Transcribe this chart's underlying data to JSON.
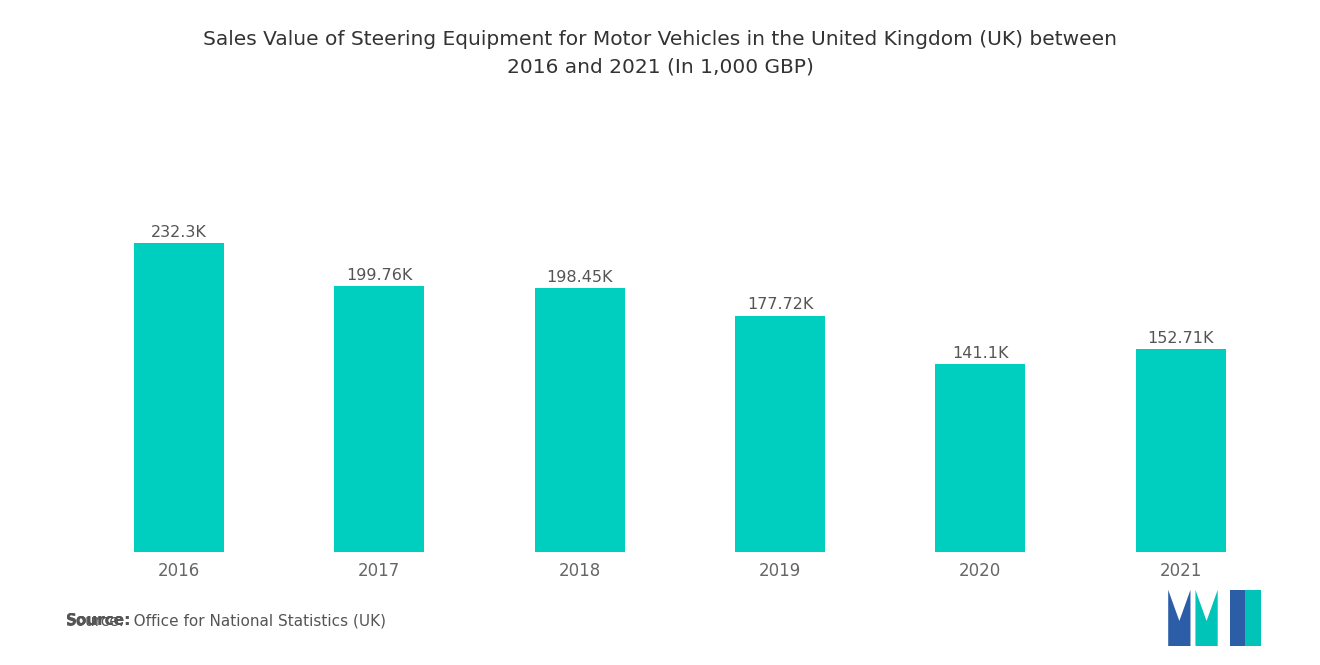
{
  "title": "Sales Value of Steering Equipment for Motor Vehicles in the United Kingdom (UK) between\n2016 and 2021 (In 1,000 GBP)",
  "categories": [
    "2016",
    "2017",
    "2018",
    "2019",
    "2020",
    "2021"
  ],
  "values": [
    232.3,
    199.76,
    198.45,
    177.72,
    141.1,
    152.71
  ],
  "labels": [
    "232.3K",
    "199.76K",
    "198.45K",
    "177.72K",
    "141.1K",
    "152.71K"
  ],
  "bar_color": "#00CFC0",
  "background_color": "#FFFFFF",
  "source_bold": "Source:",
  "source_rest": "  Office for National Statistics (UK)",
  "title_fontsize": 14.5,
  "label_fontsize": 11.5,
  "tick_fontsize": 12,
  "source_fontsize": 11,
  "ylim": [
    0,
    265
  ],
  "bar_width": 0.45,
  "logo_blue": "#2B5EA7",
  "logo_teal": "#00C4B8"
}
